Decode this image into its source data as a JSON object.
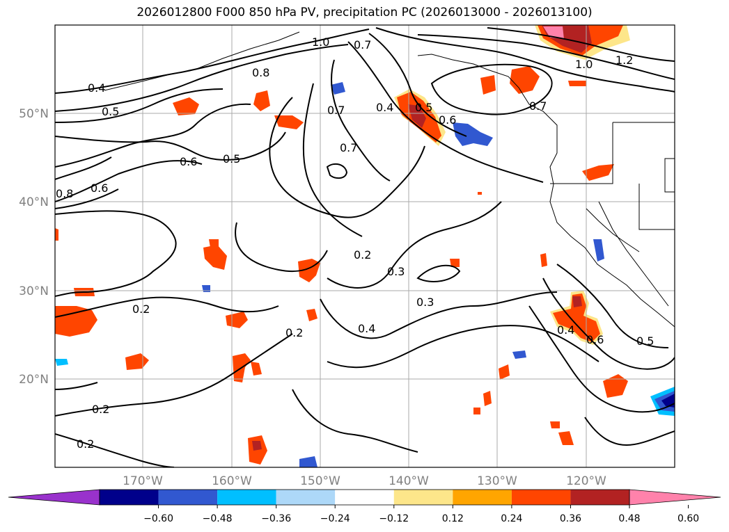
{
  "title": "2026012800 F000 850 hPa PV, precipitation PC (2026013000 - 2026013100)",
  "latitude_labels": [
    "50°N",
    "40°N",
    "30°N",
    "20°N"
  ],
  "longitude_labels": [
    "170°W",
    "160°W",
    "150°W",
    "140°W",
    "130°W",
    "120°W"
  ],
  "contour_labels": [
    "1.0",
    "0.7",
    "0.8",
    "0.4",
    "0.5",
    "0.7",
    "0.7",
    "0.4",
    "0.5",
    "0.6",
    "0.6",
    "0.5",
    "0.8",
    "0.6",
    "0.7",
    "1.0",
    "1.2",
    "0.2",
    "0.3",
    "0.3",
    "0.2",
    "0.4",
    "0.2",
    "0.2",
    "0.2",
    "0.4",
    "0.6",
    "0.5"
  ],
  "colorbar": {
    "tick_labels": [
      "−0.60",
      "−0.48",
      "−0.36",
      "−0.24",
      "−0.12",
      "0.12",
      "0.24",
      "0.36",
      "0.48",
      "0.60"
    ],
    "colors": [
      "#9932cc",
      "#00008b",
      "#3158d0",
      "#00bfff",
      "#add8f8",
      "#ffffff",
      "#fde68a",
      "#ffa500",
      "#ff4500",
      "#b22222",
      "#ff82ab"
    ]
  },
  "colors": {
    "precip_positive_orange": "#ff4500",
    "precip_positive_red": "#b22222",
    "precip_positive_pink": "#ff82ab",
    "precip_positive_light": "#fde68a",
    "precip_negative_blue": "#3158d0",
    "precip_negative_light": "#00bfff",
    "grid": "#aaaaaa"
  }
}
